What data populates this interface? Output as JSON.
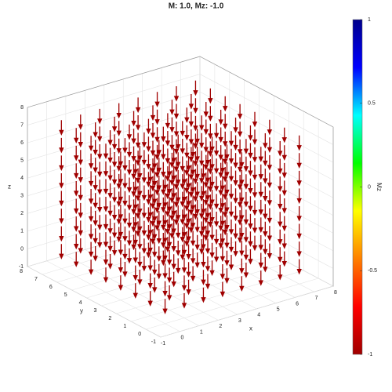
{
  "chart_data": {
    "type": "quiver3d",
    "title": "M: 1.0,  Mz: -1.0",
    "x": [
      0,
      1,
      2,
      3,
      4,
      5,
      6,
      7
    ],
    "y": [
      0,
      1,
      2,
      3,
      4,
      5,
      6,
      7
    ],
    "z": [
      0,
      1,
      2,
      3,
      4,
      5,
      6,
      7
    ],
    "m": 1.0,
    "mz": -1.0,
    "color": "#a00000",
    "xlabel": "x",
    "ylabel": "y",
    "zlabel": "z",
    "xlim": [
      -1,
      8
    ],
    "ylim": [
      -1,
      8
    ],
    "zlim": [
      -1,
      8
    ],
    "xticks": [
      -1,
      0,
      1,
      2,
      3,
      4,
      5,
      6,
      7,
      8
    ],
    "yticks": [
      -1,
      0,
      1,
      2,
      3,
      4,
      5,
      6,
      7,
      8
    ],
    "zticks": [
      -1,
      0,
      1,
      2,
      3,
      4,
      5,
      6,
      7,
      8
    ],
    "grid": true,
    "colorbar": {
      "label": "Mz",
      "lim": [
        -1,
        1
      ],
      "ticks": [
        -1,
        -0.5,
        0,
        0.5,
        1
      ],
      "colormap": [
        "#a00000",
        "#ff0000",
        "#ff8000",
        "#ffff00",
        "#00ff00",
        "#00ffff",
        "#0000ff",
        "#00008b"
      ]
    }
  }
}
